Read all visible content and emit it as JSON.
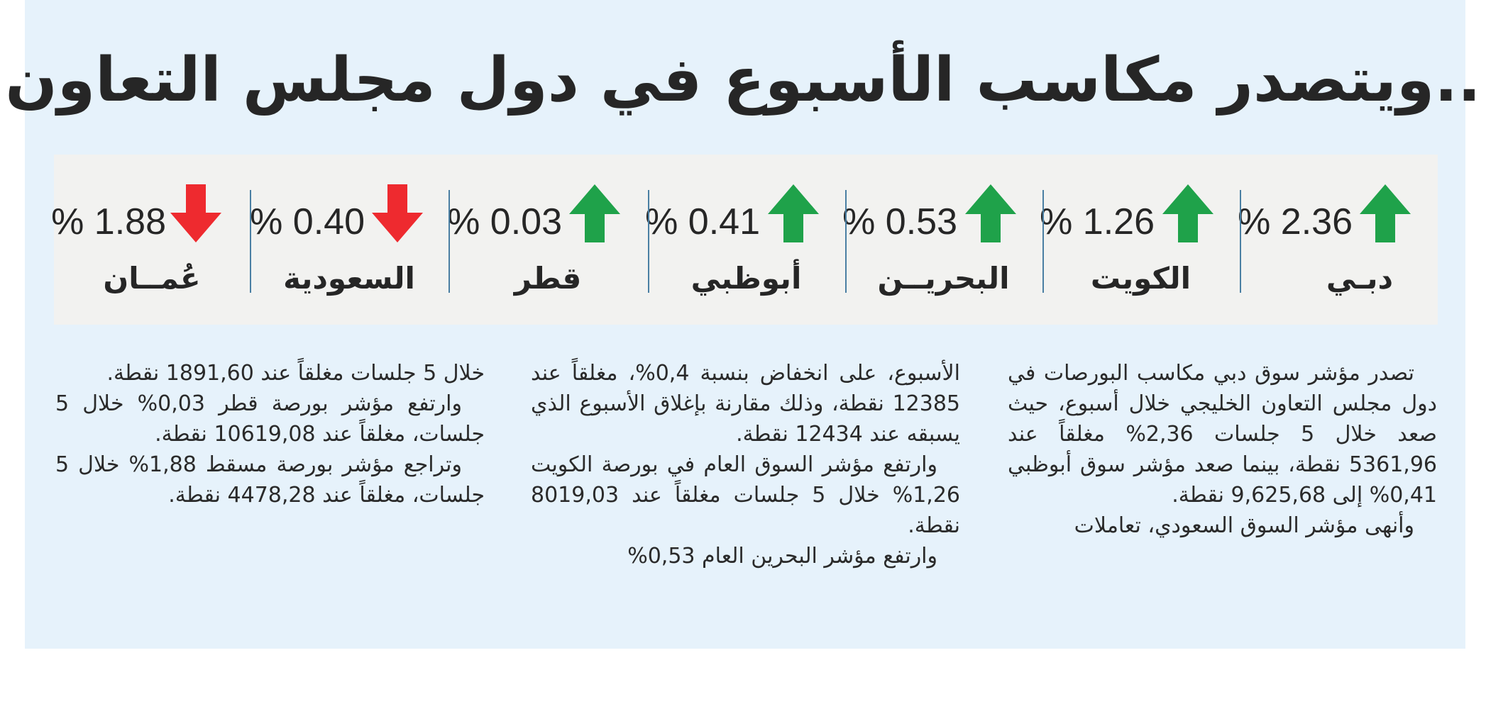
{
  "headline": "..ويتصدر مكاسب الأسبوع في دول مجلس التعاون",
  "colors": {
    "up": "#1fa24a",
    "down": "#ee2a2f",
    "background": "#e6f2fb",
    "strip": "#f2f2f0"
  },
  "markets": [
    {
      "name": "دبـي",
      "change": "% 2.36",
      "direction": "up",
      "icon": "arrow-up-icon"
    },
    {
      "name": "الكويت",
      "change": "% 1.26",
      "direction": "up",
      "icon": "arrow-up-icon"
    },
    {
      "name": "البحريــن",
      "change": "% 0.53",
      "direction": "up",
      "icon": "arrow-up-icon"
    },
    {
      "name": "أبوظبي",
      "change": "% 0.41",
      "direction": "up",
      "icon": "arrow-up-icon"
    },
    {
      "name": "قطر",
      "change": "% 0.03",
      "direction": "up",
      "icon": "arrow-up-icon"
    },
    {
      "name": "السعودية",
      "change": "% 0.40",
      "direction": "down",
      "icon": "arrow-down-icon"
    },
    {
      "name": "عُمــان",
      "change": "% 1.88",
      "direction": "down",
      "icon": "arrow-down-icon"
    }
  ],
  "article": {
    "col1": [
      "تصدر مؤشر سوق دبي مكاسب البورصات في دول مجلس التعاون الخليجي خلال أسبوع، حيث صعد خلال 5 جلسات 2,36% مغلقاً عند 5361,96 نقطة، بينما صعد مؤشر سوق أبوظبي 0,41% إلى 9,625,68 نقطة.",
      "وأنهى مؤشر السوق السعودي، تعاملات"
    ],
    "col2": [
      "الأسبوع، على انخفاض بنسبة 0,4%، مغلقاً عند 12385 نقطة، وذلك مقارنة بإغلاق الأسبوع الذي يسبقه عند 12434 نقطة.",
      "وارتفع مؤشر السوق العام في بورصة الكويت 1,26% خلال 5 جلسات مغلقاً عند 8019,03 نقطة.",
      "وارتفع مؤشر البحرين العام 0,53%"
    ],
    "col3": [
      "خلال 5 جلسات مغلقاً عند 1891,60 نقطة.",
      "وارتفع مؤشر بورصة قطر 0,03% خلال 5 جلسات، مغلقاً عند 10619,08 نقطة.",
      "وتراجع مؤشر بورصة مسقط 1,88% خلال 5 جلسات، مغلقاً عند 4478,28 نقطة."
    ]
  }
}
